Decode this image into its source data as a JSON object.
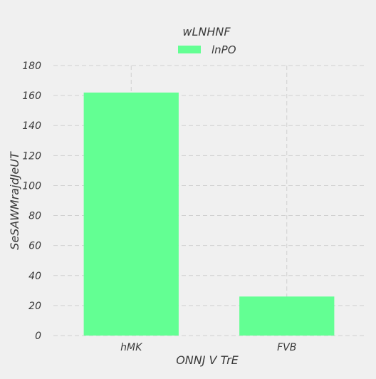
{
  "chart_data": {
    "type": "bar",
    "title": "wLNHNF",
    "xlabel": "ONNJ  V TrE",
    "ylabel": "SeSAWMrajdJeUT",
    "categories": [
      "hMK",
      "FVB"
    ],
    "series": [
      {
        "name": "lnPO",
        "values": [
          162,
          26
        ]
      }
    ],
    "ylim": [
      0,
      180
    ],
    "yticks": [
      0,
      20,
      40,
      60,
      80,
      100,
      120,
      140,
      160,
      180
    ],
    "grid": true,
    "legend_position": "top-center",
    "bar_color": "#63ff93",
    "background_color": "#f0f0f0",
    "grid_color": "#d0d0d0"
  }
}
